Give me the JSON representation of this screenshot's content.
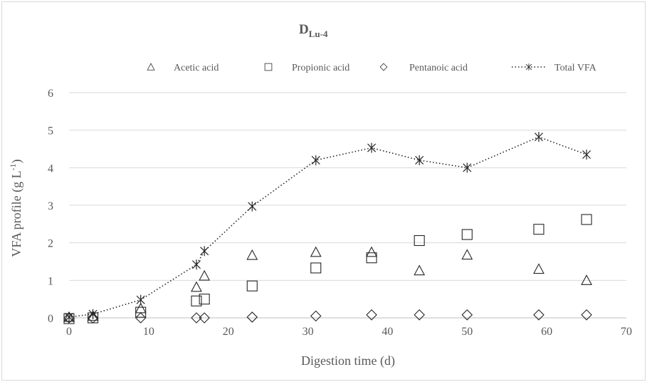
{
  "chart_data": {
    "type": "scatter",
    "title": "D",
    "title_subscript": "Lu-4",
    "xlabel": "Digestion time (d)",
    "ylabel_main": "VFA profile (g L",
    "ylabel_sup": "-1",
    "ylabel_close": ")",
    "xlim": [
      0,
      70
    ],
    "ylim": [
      0,
      6
    ],
    "x_ticks": [
      0,
      10,
      20,
      30,
      40,
      50,
      60,
      70
    ],
    "y_ticks": [
      0,
      1,
      2,
      3,
      4,
      5,
      6
    ],
    "grid": "horizontal",
    "legend_position": "top",
    "series": [
      {
        "name": "Acetic acid",
        "marker": "triangle",
        "line": "none",
        "x": [
          0,
          3,
          9,
          16,
          17,
          23,
          31,
          38,
          44,
          50,
          59,
          65
        ],
        "y": [
          0.02,
          0.05,
          0.25,
          0.82,
          1.12,
          1.67,
          1.75,
          1.75,
          1.26,
          1.68,
          1.3,
          1.0
        ]
      },
      {
        "name": "Propionic acid",
        "marker": "square",
        "line": "none",
        "x": [
          0,
          3,
          9,
          16,
          17,
          23,
          31,
          38,
          44,
          50,
          59,
          65
        ],
        "y": [
          -0.02,
          0.0,
          0.15,
          0.45,
          0.5,
          0.85,
          1.33,
          1.6,
          2.06,
          2.22,
          2.36,
          2.62
        ]
      },
      {
        "name": "Pentanoic acid",
        "marker": "diamond",
        "line": "none",
        "x": [
          0,
          3,
          9,
          16,
          17,
          23,
          31,
          38,
          44,
          50,
          59,
          65
        ],
        "y": [
          0.0,
          0.0,
          0.0,
          0.0,
          0.0,
          0.02,
          0.05,
          0.08,
          0.08,
          0.08,
          0.08,
          0.08
        ]
      },
      {
        "name": "Total VFA",
        "marker": "asterisk",
        "line": "dotted",
        "x": [
          0,
          3,
          9,
          16,
          17,
          23,
          31,
          38,
          44,
          50,
          59,
          65
        ],
        "y": [
          0.02,
          0.1,
          0.48,
          1.42,
          1.78,
          2.97,
          4.2,
          4.53,
          4.2,
          4.0,
          4.82,
          4.35
        ]
      }
    ]
  }
}
